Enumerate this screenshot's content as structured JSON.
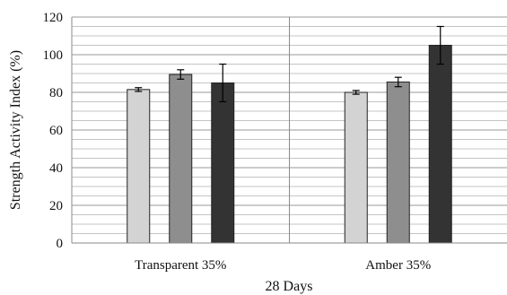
{
  "chart_data": {
    "type": "bar",
    "categories": [
      "Transparent 35%",
      "Amber 35%"
    ],
    "series": [
      {
        "color": "#d3d3d3",
        "values": [
          81.5,
          80.0
        ],
        "errors": [
          1.0,
          1.0
        ]
      },
      {
        "color": "#8e8e8e",
        "values": [
          89.5,
          85.5
        ],
        "errors": [
          2.5,
          2.5
        ]
      },
      {
        "color": "#333333",
        "values": [
          85.0,
          105.0
        ],
        "errors": [
          10.0,
          10.0
        ]
      }
    ],
    "xlabel": "28 Days",
    "ylabel": "Strength Activity Index (%)",
    "ylim": [
      0,
      120
    ],
    "yticks": [
      "0",
      "20",
      "40",
      "60",
      "80",
      "100",
      "120"
    ],
    "minor_step": 5,
    "grid": true,
    "legend": "none"
  }
}
